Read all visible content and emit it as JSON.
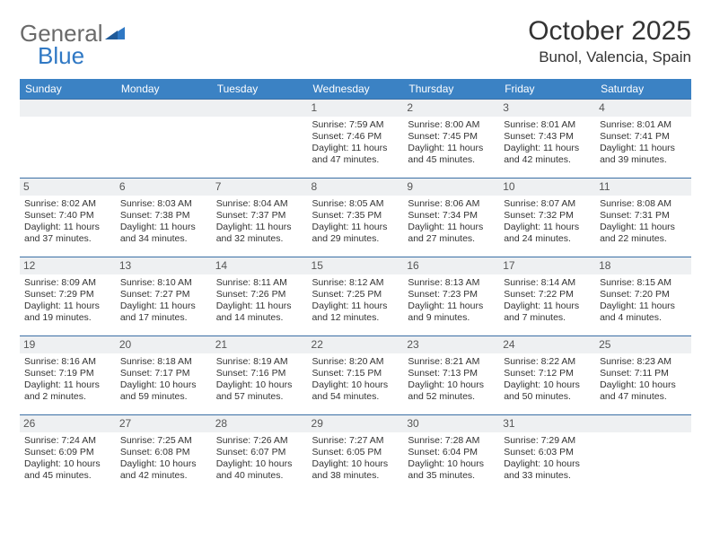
{
  "brand": {
    "part1": "General",
    "part2": "Blue"
  },
  "title": "October 2025",
  "location": "Bunol, Valencia, Spain",
  "colors": {
    "header_bg": "#3b82c4",
    "header_text": "#ffffff",
    "row_border": "#3b6fa5",
    "daynum_bg": "#eef0f2",
    "brand_blue": "#2f78c4",
    "brand_gray": "#6a6a6a"
  },
  "dow": [
    "Sunday",
    "Monday",
    "Tuesday",
    "Wednesday",
    "Thursday",
    "Friday",
    "Saturday"
  ],
  "weeks": [
    [
      null,
      null,
      null,
      {
        "n": "1",
        "sr": "7:59 AM",
        "ss": "7:46 PM",
        "dl": "11 hours and 47 minutes."
      },
      {
        "n": "2",
        "sr": "8:00 AM",
        "ss": "7:45 PM",
        "dl": "11 hours and 45 minutes."
      },
      {
        "n": "3",
        "sr": "8:01 AM",
        "ss": "7:43 PM",
        "dl": "11 hours and 42 minutes."
      },
      {
        "n": "4",
        "sr": "8:01 AM",
        "ss": "7:41 PM",
        "dl": "11 hours and 39 minutes."
      }
    ],
    [
      {
        "n": "5",
        "sr": "8:02 AM",
        "ss": "7:40 PM",
        "dl": "11 hours and 37 minutes."
      },
      {
        "n": "6",
        "sr": "8:03 AM",
        "ss": "7:38 PM",
        "dl": "11 hours and 34 minutes."
      },
      {
        "n": "7",
        "sr": "8:04 AM",
        "ss": "7:37 PM",
        "dl": "11 hours and 32 minutes."
      },
      {
        "n": "8",
        "sr": "8:05 AM",
        "ss": "7:35 PM",
        "dl": "11 hours and 29 minutes."
      },
      {
        "n": "9",
        "sr": "8:06 AM",
        "ss": "7:34 PM",
        "dl": "11 hours and 27 minutes."
      },
      {
        "n": "10",
        "sr": "8:07 AM",
        "ss": "7:32 PM",
        "dl": "11 hours and 24 minutes."
      },
      {
        "n": "11",
        "sr": "8:08 AM",
        "ss": "7:31 PM",
        "dl": "11 hours and 22 minutes."
      }
    ],
    [
      {
        "n": "12",
        "sr": "8:09 AM",
        "ss": "7:29 PM",
        "dl": "11 hours and 19 minutes."
      },
      {
        "n": "13",
        "sr": "8:10 AM",
        "ss": "7:27 PM",
        "dl": "11 hours and 17 minutes."
      },
      {
        "n": "14",
        "sr": "8:11 AM",
        "ss": "7:26 PM",
        "dl": "11 hours and 14 minutes."
      },
      {
        "n": "15",
        "sr": "8:12 AM",
        "ss": "7:25 PM",
        "dl": "11 hours and 12 minutes."
      },
      {
        "n": "16",
        "sr": "8:13 AM",
        "ss": "7:23 PM",
        "dl": "11 hours and 9 minutes."
      },
      {
        "n": "17",
        "sr": "8:14 AM",
        "ss": "7:22 PM",
        "dl": "11 hours and 7 minutes."
      },
      {
        "n": "18",
        "sr": "8:15 AM",
        "ss": "7:20 PM",
        "dl": "11 hours and 4 minutes."
      }
    ],
    [
      {
        "n": "19",
        "sr": "8:16 AM",
        "ss": "7:19 PM",
        "dl": "11 hours and 2 minutes."
      },
      {
        "n": "20",
        "sr": "8:18 AM",
        "ss": "7:17 PM",
        "dl": "10 hours and 59 minutes."
      },
      {
        "n": "21",
        "sr": "8:19 AM",
        "ss": "7:16 PM",
        "dl": "10 hours and 57 minutes."
      },
      {
        "n": "22",
        "sr": "8:20 AM",
        "ss": "7:15 PM",
        "dl": "10 hours and 54 minutes."
      },
      {
        "n": "23",
        "sr": "8:21 AM",
        "ss": "7:13 PM",
        "dl": "10 hours and 52 minutes."
      },
      {
        "n": "24",
        "sr": "8:22 AM",
        "ss": "7:12 PM",
        "dl": "10 hours and 50 minutes."
      },
      {
        "n": "25",
        "sr": "8:23 AM",
        "ss": "7:11 PM",
        "dl": "10 hours and 47 minutes."
      }
    ],
    [
      {
        "n": "26",
        "sr": "7:24 AM",
        "ss": "6:09 PM",
        "dl": "10 hours and 45 minutes."
      },
      {
        "n": "27",
        "sr": "7:25 AM",
        "ss": "6:08 PM",
        "dl": "10 hours and 42 minutes."
      },
      {
        "n": "28",
        "sr": "7:26 AM",
        "ss": "6:07 PM",
        "dl": "10 hours and 40 minutes."
      },
      {
        "n": "29",
        "sr": "7:27 AM",
        "ss": "6:05 PM",
        "dl": "10 hours and 38 minutes."
      },
      {
        "n": "30",
        "sr": "7:28 AM",
        "ss": "6:04 PM",
        "dl": "10 hours and 35 minutes."
      },
      {
        "n": "31",
        "sr": "7:29 AM",
        "ss": "6:03 PM",
        "dl": "10 hours and 33 minutes."
      },
      null
    ]
  ],
  "labels": {
    "sunrise": "Sunrise:",
    "sunset": "Sunset:",
    "daylight": "Daylight:"
  }
}
